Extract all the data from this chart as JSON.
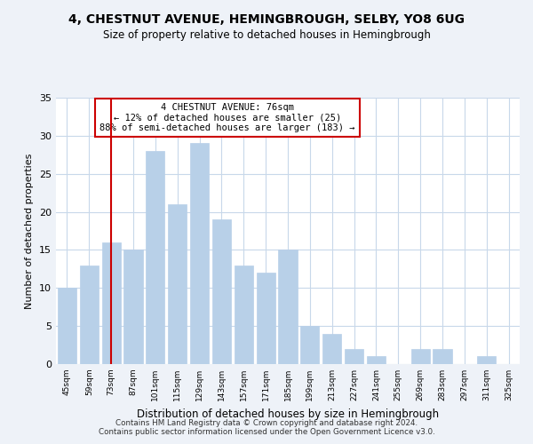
{
  "title": "4, CHESTNUT AVENUE, HEMINGBROUGH, SELBY, YO8 6UG",
  "subtitle": "Size of property relative to detached houses in Hemingbrough",
  "xlabel": "Distribution of detached houses by size in Hemingbrough",
  "ylabel": "Number of detached properties",
  "footer_line1": "Contains HM Land Registry data © Crown copyright and database right 2024.",
  "footer_line2": "Contains public sector information licensed under the Open Government Licence v3.0.",
  "bin_labels": [
    "45sqm",
    "59sqm",
    "73sqm",
    "87sqm",
    "101sqm",
    "115sqm",
    "129sqm",
    "143sqm",
    "157sqm",
    "171sqm",
    "185sqm",
    "199sqm",
    "213sqm",
    "227sqm",
    "241sqm",
    "255sqm",
    "269sqm",
    "283sqm",
    "297sqm",
    "311sqm",
    "325sqm"
  ],
  "bar_values": [
    10,
    13,
    16,
    15,
    28,
    21,
    29,
    19,
    13,
    12,
    15,
    5,
    4,
    2,
    1,
    0,
    2,
    2,
    0,
    1,
    0
  ],
  "bar_color": "#b8d0e8",
  "bar_edge_color": "#b8d0e8",
  "vline_x_index": 2,
  "vline_color": "#cc0000",
  "ann_line1": "4 CHESTNUT AVENUE: 76sqm",
  "ann_line2": "← 12% of detached houses are smaller (25)",
  "ann_line3": "88% of semi-detached houses are larger (183) →",
  "annotation_box_color": "#ffffff",
  "annotation_box_edge": "#cc0000",
  "ylim": [
    0,
    35
  ],
  "yticks": [
    0,
    5,
    10,
    15,
    20,
    25,
    30,
    35
  ],
  "background_color": "#eef2f8",
  "plot_background": "#ffffff"
}
